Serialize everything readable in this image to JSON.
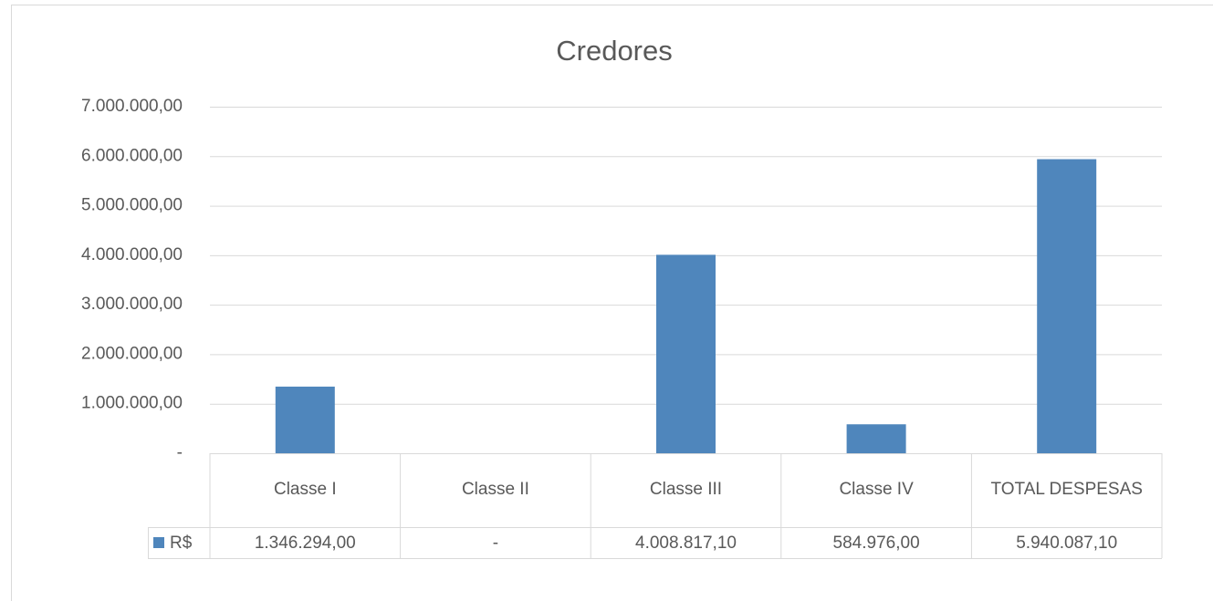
{
  "chart_data": {
    "type": "bar",
    "title": "Credores",
    "categories": [
      "Classe I",
      "Classe II",
      "Classe III",
      "Classe IV",
      "TOTAL DESPESAS"
    ],
    "series": [
      {
        "name": "R$",
        "color": "#4f86bc",
        "values": [
          1346294,
          0,
          4008817.1,
          584976,
          5940087.1
        ],
        "value_labels": [
          "1.346.294,00",
          "-",
          "4.008.817,10",
          "584.976,00",
          "5.940.087,10"
        ]
      }
    ],
    "ylim": [
      0,
      7000000
    ],
    "yticks": [
      {
        "value": 0,
        "label": "-"
      },
      {
        "value": 1000000,
        "label": "1.000.000,00"
      },
      {
        "value": 2000000,
        "label": "2.000.000,00"
      },
      {
        "value": 3000000,
        "label": "3.000.000,00"
      },
      {
        "value": 4000000,
        "label": "4.000.000,00"
      },
      {
        "value": 5000000,
        "label": "5.000.000,00"
      },
      {
        "value": 6000000,
        "label": "6.000.000,00"
      },
      {
        "value": 7000000,
        "label": "7.000.000,00"
      }
    ],
    "grid": true
  }
}
